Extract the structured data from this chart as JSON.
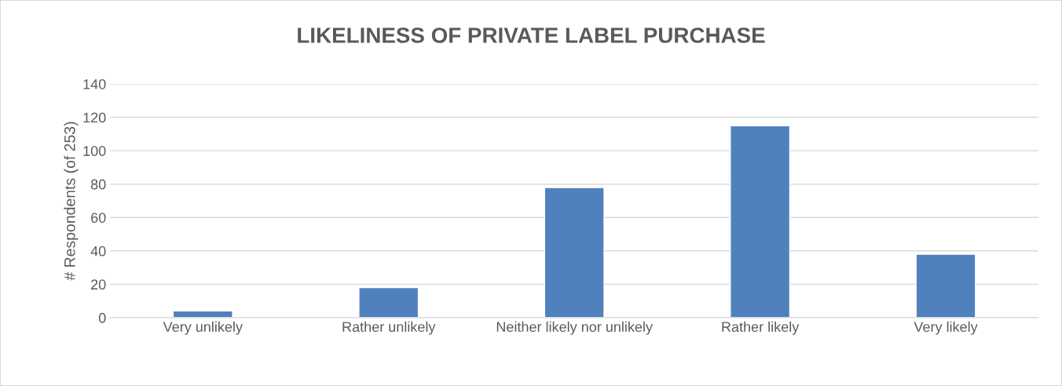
{
  "chart_data": {
    "type": "bar",
    "title": "LIKELINESS OF PRIVATE LABEL PURCHASE",
    "ylabel": "# Respondents (of 253)",
    "categories": [
      "Very unlikely",
      "Rather unlikely",
      "Neither likely nor unlikely",
      "Rather likely",
      "Very likely"
    ],
    "values": [
      4,
      18,
      78,
      115,
      38
    ],
    "color": "#4f81bd",
    "ylim": [
      0,
      140
    ],
    "yticks": [
      0,
      20,
      40,
      60,
      80,
      100,
      120,
      140
    ],
    "grid": "y",
    "legend": false
  }
}
